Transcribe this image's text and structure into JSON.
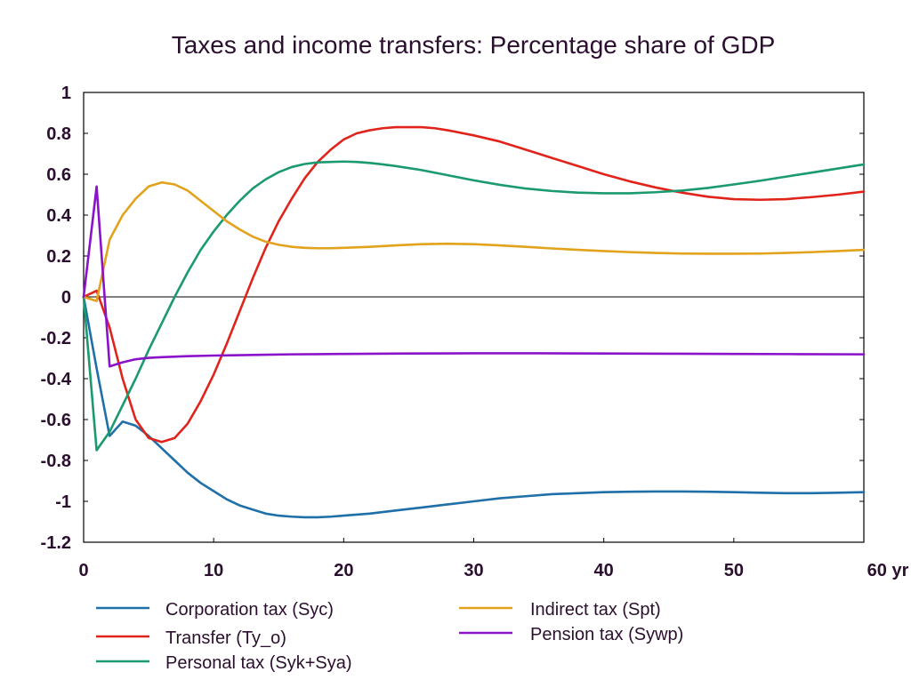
{
  "chart_data": {
    "type": "line",
    "title": "Taxes and income transfers: Percentage share of GDP",
    "x_unit_label": "yr",
    "xlim": [
      0,
      60
    ],
    "ylim": [
      -1.2,
      1
    ],
    "x_ticks": [
      0,
      10,
      20,
      30,
      40,
      50,
      60
    ],
    "x_tick_labels": [
      "0",
      "10",
      "20",
      "30",
      "40",
      "50",
      "60 yr"
    ],
    "y_ticks": [
      -1.2,
      -1,
      -0.8,
      -0.6,
      -0.4,
      -0.2,
      0,
      0.2,
      0.4,
      0.6,
      0.8,
      1
    ],
    "y_tick_labels": [
      "-1.2",
      "-1",
      "-0.8",
      "-0.6",
      "-0.4",
      "-0.2",
      "0",
      "0.2",
      "0.4",
      "0.6",
      "0.8",
      "1"
    ],
    "grid": false,
    "zero_line": true,
    "legend_position": "bottom",
    "series": [
      {
        "name": "Corporation tax (Syc)",
        "color": "#1f6fa8",
        "x": [
          0,
          1,
          2,
          3,
          4,
          5,
          6,
          7,
          8,
          9,
          10,
          11,
          12,
          13,
          14,
          15,
          16,
          17,
          18,
          19,
          20,
          22,
          24,
          26,
          28,
          30,
          32,
          34,
          36,
          38,
          40,
          42,
          44,
          46,
          48,
          50,
          52,
          54,
          56,
          58,
          60
        ],
        "y": [
          0,
          -0.35,
          -0.68,
          -0.61,
          -0.63,
          -0.68,
          -0.74,
          -0.8,
          -0.86,
          -0.91,
          -0.95,
          -0.99,
          -1.02,
          -1.04,
          -1.06,
          -1.07,
          -1.075,
          -1.078,
          -1.078,
          -1.075,
          -1.07,
          -1.06,
          -1.045,
          -1.03,
          -1.015,
          -1.0,
          -0.985,
          -0.975,
          -0.965,
          -0.96,
          -0.955,
          -0.953,
          -0.952,
          -0.952,
          -0.953,
          -0.955,
          -0.958,
          -0.96,
          -0.96,
          -0.958,
          -0.955
        ]
      },
      {
        "name": "Transfer (Ty_o)",
        "color": "#e0241b",
        "x": [
          0,
          1,
          2,
          3,
          4,
          5,
          6,
          7,
          8,
          9,
          10,
          11,
          12,
          13,
          14,
          15,
          16,
          17,
          18,
          19,
          20,
          21,
          22,
          23,
          24,
          25,
          26,
          27,
          28,
          30,
          32,
          34,
          36,
          38,
          40,
          42,
          44,
          46,
          48,
          50,
          52,
          54,
          56,
          58,
          60
        ],
        "y": [
          0,
          0.03,
          -0.15,
          -0.4,
          -0.6,
          -0.69,
          -0.71,
          -0.69,
          -0.62,
          -0.51,
          -0.38,
          -0.23,
          -0.07,
          0.09,
          0.24,
          0.37,
          0.48,
          0.58,
          0.66,
          0.72,
          0.77,
          0.8,
          0.815,
          0.825,
          0.83,
          0.83,
          0.83,
          0.825,
          0.815,
          0.79,
          0.76,
          0.72,
          0.68,
          0.64,
          0.6,
          0.565,
          0.535,
          0.51,
          0.49,
          0.478,
          0.475,
          0.478,
          0.488,
          0.5,
          0.515
        ]
      },
      {
        "name": "Personal tax (Syk+Sya)",
        "color": "#1a9a6e",
        "x": [
          0,
          1,
          2,
          3,
          4,
          5,
          6,
          7,
          8,
          9,
          10,
          11,
          12,
          13,
          14,
          15,
          16,
          17,
          18,
          19,
          20,
          21,
          22,
          23,
          24,
          26,
          28,
          30,
          32,
          34,
          36,
          38,
          40,
          42,
          44,
          46,
          48,
          50,
          52,
          54,
          56,
          58,
          60
        ],
        "y": [
          0,
          -0.75,
          -0.66,
          -0.53,
          -0.4,
          -0.26,
          -0.13,
          0.0,
          0.12,
          0.23,
          0.32,
          0.4,
          0.47,
          0.53,
          0.575,
          0.61,
          0.635,
          0.65,
          0.658,
          0.66,
          0.662,
          0.66,
          0.655,
          0.648,
          0.64,
          0.62,
          0.595,
          0.57,
          0.548,
          0.53,
          0.518,
          0.51,
          0.507,
          0.507,
          0.512,
          0.52,
          0.533,
          0.55,
          0.568,
          0.588,
          0.608,
          0.628,
          0.648
        ]
      },
      {
        "name": "Indirect tax (Spt)",
        "color": "#e2a21b",
        "x": [
          0,
          1,
          2,
          3,
          4,
          5,
          6,
          7,
          8,
          9,
          10,
          11,
          12,
          13,
          14,
          15,
          16,
          17,
          18,
          19,
          20,
          22,
          24,
          26,
          28,
          30,
          32,
          34,
          36,
          38,
          40,
          42,
          44,
          46,
          48,
          50,
          52,
          54,
          56,
          58,
          60
        ],
        "y": [
          0,
          -0.02,
          0.28,
          0.4,
          0.48,
          0.54,
          0.56,
          0.55,
          0.52,
          0.47,
          0.42,
          0.37,
          0.33,
          0.295,
          0.27,
          0.255,
          0.245,
          0.24,
          0.238,
          0.238,
          0.24,
          0.245,
          0.252,
          0.258,
          0.26,
          0.258,
          0.252,
          0.245,
          0.237,
          0.23,
          0.224,
          0.219,
          0.215,
          0.212,
          0.211,
          0.211,
          0.212,
          0.215,
          0.219,
          0.224,
          0.23
        ]
      },
      {
        "name": "Pension tax (Sywp)",
        "color": "#8a12c9",
        "x": [
          0,
          1,
          2,
          3,
          4,
          5,
          6,
          8,
          10,
          12,
          14,
          16,
          18,
          20,
          25,
          30,
          35,
          40,
          45,
          50,
          55,
          60
        ],
        "y": [
          0,
          0.54,
          -0.34,
          -0.32,
          -0.305,
          -0.298,
          -0.295,
          -0.29,
          -0.287,
          -0.285,
          -0.283,
          -0.281,
          -0.28,
          -0.279,
          -0.277,
          -0.276,
          -0.276,
          -0.277,
          -0.278,
          -0.279,
          -0.28,
          -0.281
        ]
      }
    ],
    "legend": [
      {
        "label": "Corporation tax (Syc)",
        "color": "#1f6fa8"
      },
      {
        "label": "Transfer (Ty_o)",
        "color": "#e0241b"
      },
      {
        "label": "Personal tax (Syk+Sya)",
        "color": "#1a9a6e"
      },
      {
        "label": "Indirect tax (Spt)",
        "color": "#e2a21b"
      },
      {
        "label": "Pension tax (Sywp)",
        "color": "#8a12c9"
      }
    ]
  }
}
